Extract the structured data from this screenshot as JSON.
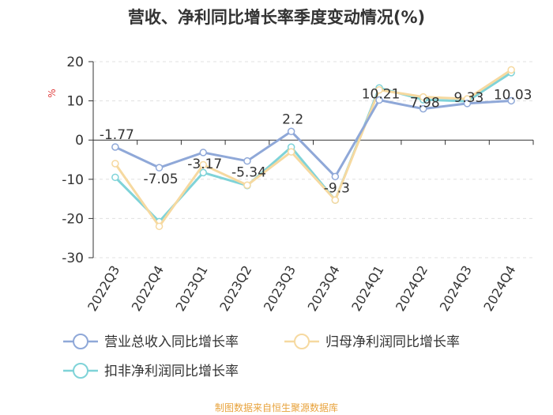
{
  "chart_data": {
    "type": "line",
    "title": "营收、净利同比增长率季度变动情况(%)",
    "ylabel": "%",
    "xlabel": "",
    "ylim": [
      -30,
      20
    ],
    "yticks": [
      20,
      10,
      0,
      -10,
      -20,
      -30
    ],
    "grid": true,
    "categories": [
      "2022Q3",
      "2022Q4",
      "2023Q1",
      "2023Q2",
      "2023Q3",
      "2023Q4",
      "2024Q1",
      "2024Q2",
      "2024Q3",
      "2024Q4"
    ],
    "series": [
      {
        "name": "营业总收入同比增长率",
        "color": "#8fa8d8",
        "values": [
          -1.77,
          -7.05,
          -3.17,
          -5.34,
          2.2,
          -9.3,
          10.21,
          7.98,
          9.33,
          10.03
        ],
        "labels": [
          "-1.77",
          "-7.05",
          "-3.17",
          "-5.34",
          "2.2",
          "-9.3",
          "10.21",
          "7.98",
          "9.33",
          "10.03"
        ]
      },
      {
        "name": "归母净利润同比增长率",
        "color": "#f6d9a0",
        "values": [
          -6,
          -22,
          -6.3,
          -11.5,
          -3,
          -15.3,
          12.8,
          11,
          10.5,
          17.9
        ]
      },
      {
        "name": "扣非净利润同比增长率",
        "color": "#7fd3d8",
        "values": [
          -9.5,
          -20.8,
          -8.3,
          -11.6,
          -1.8,
          -15.3,
          13.3,
          10.3,
          9.9,
          17.2
        ]
      }
    ],
    "legend_position": "bottom"
  },
  "source": "制图数据来自恒生聚源数据库"
}
